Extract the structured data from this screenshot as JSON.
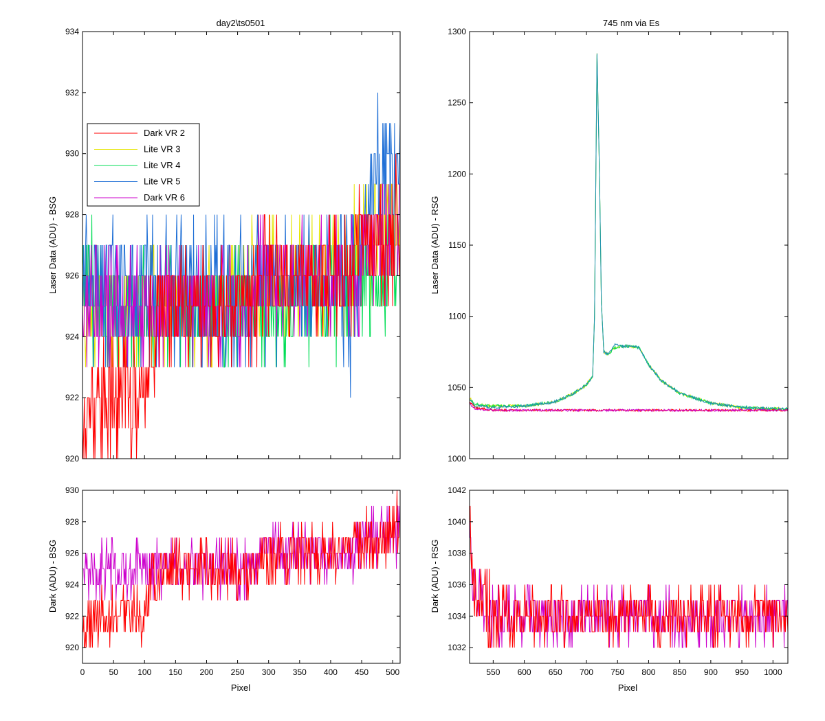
{
  "chart_data": [
    {
      "id": "tl",
      "type": "line",
      "title": "day2\\ts0501",
      "xlabel": "",
      "ylabel": "Laser Data (ADU) - BSG",
      "xlim": [
        0,
        512
      ],
      "ylim": [
        920,
        934
      ],
      "xticks": [
        0,
        50,
        100,
        150,
        200,
        250,
        300,
        350,
        400,
        450,
        500
      ],
      "yticks": [
        920,
        922,
        924,
        926,
        928,
        930,
        932,
        934
      ],
      "show_xtick_labels": false,
      "grid": false,
      "legend": {
        "placement": "upper-left",
        "entries": [
          {
            "label": "Dark VR 2",
            "color": "#ff0000"
          },
          {
            "label": "Lite VR 3",
            "color": "#e6e600"
          },
          {
            "label": "Lite VR 4",
            "color": "#00dd55"
          },
          {
            "label": "Lite VR 5",
            "color": "#1f6fd6"
          },
          {
            "label": "Dark VR 6",
            "color": "#cc00cc"
          }
        ]
      },
      "series": [
        {
          "color": "#e6e600",
          "points": [
            [
              0,
              925
            ],
            [
              40,
              925
            ],
            [
              80,
              925
            ],
            [
              120,
              925
            ],
            [
              160,
              925
            ],
            [
              200,
              925.3
            ],
            [
              240,
              925.5
            ],
            [
              280,
              925.6
            ],
            [
              320,
              926
            ],
            [
              360,
              926
            ],
            [
              400,
              926
            ],
            [
              430,
              926.2
            ],
            [
              450,
              927
            ],
            [
              470,
              927.5
            ],
            [
              490,
              927.8
            ],
            [
              512,
              928
            ]
          ],
          "noise": 1.0
        },
        {
          "color": "#00dd55",
          "points": [
            [
              0,
              926
            ],
            [
              30,
              925
            ],
            [
              60,
              925
            ],
            [
              100,
              925
            ],
            [
              150,
              925
            ],
            [
              200,
              925
            ],
            [
              250,
              925
            ],
            [
              300,
              925
            ],
            [
              350,
              925
            ],
            [
              380,
              925
            ],
            [
              400,
              925.5
            ],
            [
              420,
              925.7
            ],
            [
              440,
              926
            ],
            [
              460,
              926
            ],
            [
              512,
              926
            ]
          ],
          "noise": 1.1
        },
        {
          "color": "#1f6fd6",
          "points": [
            [
              0,
              926
            ],
            [
              50,
              925.5
            ],
            [
              100,
              925.5
            ],
            [
              150,
              925.5
            ],
            [
              200,
              925.6
            ],
            [
              250,
              925.7
            ],
            [
              300,
              925.8
            ],
            [
              350,
              926
            ],
            [
              400,
              926
            ],
            [
              415,
              926
            ],
            [
              420,
              925
            ],
            [
              425,
              927
            ],
            [
              430,
              924
            ],
            [
              435,
              926
            ],
            [
              440,
              925
            ],
            [
              450,
              927
            ],
            [
              470,
              929
            ],
            [
              490,
              929.5
            ],
            [
              512,
              929.8
            ]
          ],
          "noise": 1.2
        },
        {
          "color": "#cc00cc",
          "points": [
            [
              0,
              925
            ],
            [
              50,
              924.6
            ],
            [
              80,
              924.6
            ],
            [
              100,
              924.6
            ],
            [
              150,
              925
            ],
            [
              200,
              925
            ],
            [
              250,
              925.3
            ],
            [
              300,
              925.6
            ],
            [
              350,
              925.8
            ],
            [
              400,
              926
            ],
            [
              450,
              926.5
            ],
            [
              480,
              927
            ],
            [
              512,
              927.6
            ]
          ],
          "noise": 1.0
        },
        {
          "color": "#ff0000",
          "points": [
            [
              0,
              921
            ],
            [
              20,
              922
            ],
            [
              50,
              922
            ],
            [
              80,
              921.8
            ],
            [
              100,
              922
            ],
            [
              110,
              924
            ],
            [
              130,
              925
            ],
            [
              150,
              925
            ],
            [
              200,
              925
            ],
            [
              250,
              925.3
            ],
            [
              300,
              925.6
            ],
            [
              350,
              925.8
            ],
            [
              400,
              926.2
            ],
            [
              450,
              926.6
            ],
            [
              480,
              927.2
            ],
            [
              512,
              927.6
            ]
          ],
          "noise": 1.0
        }
      ]
    },
    {
      "id": "tr",
      "type": "line",
      "title": "745 nm via Es",
      "xlabel": "",
      "ylabel": "Laser Data (ADU) - RSG",
      "xlim": [
        512,
        1024
      ],
      "ylim": [
        1000,
        1300
      ],
      "xticks": [
        550,
        600,
        650,
        700,
        750,
        800,
        850,
        900,
        950,
        1000
      ],
      "yticks": [
        1000,
        1050,
        1100,
        1150,
        1200,
        1250,
        1300
      ],
      "show_xtick_labels": false,
      "grid": false,
      "series": [
        {
          "color": "#e6e600",
          "points": [
            [
              512,
              1043
            ],
            [
              520,
              1038
            ],
            [
              550,
              1037
            ],
            [
              600,
              1037
            ],
            [
              650,
              1040
            ],
            [
              680,
              1046
            ],
            [
              700,
              1052
            ],
            [
              710,
              1058
            ],
            [
              713,
              1100
            ],
            [
              717,
              1285
            ],
            [
              721,
              1200
            ],
            [
              724,
              1110
            ],
            [
              728,
              1075
            ],
            [
              735,
              1073
            ],
            [
              745,
              1078
            ],
            [
              755,
              1079
            ],
            [
              770,
              1079
            ],
            [
              785,
              1078
            ],
            [
              800,
              1066
            ],
            [
              820,
              1055
            ],
            [
              850,
              1046
            ],
            [
              900,
              1039
            ],
            [
              950,
              1036
            ],
            [
              1000,
              1035
            ],
            [
              1024,
              1035
            ]
          ],
          "noise": 2
        },
        {
          "color": "#00dd55",
          "points": [
            [
              512,
              1042
            ],
            [
              520,
              1038
            ],
            [
              550,
              1037
            ],
            [
              600,
              1037
            ],
            [
              650,
              1040
            ],
            [
              680,
              1046
            ],
            [
              700,
              1052
            ],
            [
              710,
              1058
            ],
            [
              713,
              1100
            ],
            [
              717,
              1284
            ],
            [
              721,
              1200
            ],
            [
              724,
              1110
            ],
            [
              728,
              1075
            ],
            [
              735,
              1073
            ],
            [
              745,
              1078
            ],
            [
              755,
              1079
            ],
            [
              770,
              1079
            ],
            [
              785,
              1078
            ],
            [
              800,
              1066
            ],
            [
              820,
              1055
            ],
            [
              850,
              1046
            ],
            [
              900,
              1039
            ],
            [
              950,
              1036
            ],
            [
              1000,
              1035
            ],
            [
              1024,
              1035
            ]
          ],
          "noise": 2
        },
        {
          "color": "#1f8fb0",
          "points": [
            [
              512,
              1042
            ],
            [
              520,
              1037
            ],
            [
              550,
              1036
            ],
            [
              600,
              1037
            ],
            [
              650,
              1040
            ],
            [
              680,
              1046
            ],
            [
              700,
              1052
            ],
            [
              710,
              1058
            ],
            [
              713,
              1100
            ],
            [
              717,
              1285
            ],
            [
              721,
              1200
            ],
            [
              724,
              1110
            ],
            [
              728,
              1075
            ],
            [
              735,
              1073
            ],
            [
              745,
              1080
            ],
            [
              755,
              1079
            ],
            [
              770,
              1079
            ],
            [
              785,
              1078
            ],
            [
              800,
              1066
            ],
            [
              820,
              1055
            ],
            [
              850,
              1046
            ],
            [
              900,
              1039
            ],
            [
              950,
              1036
            ],
            [
              1000,
              1035
            ],
            [
              1024,
              1035
            ]
          ],
          "noise": 2
        },
        {
          "color": "#ff0000",
          "points": [
            [
              512,
              1040
            ],
            [
              520,
              1036
            ],
            [
              550,
              1034
            ],
            [
              600,
              1034
            ],
            [
              700,
              1034
            ],
            [
              800,
              1034
            ],
            [
              900,
              1034
            ],
            [
              1024,
              1034
            ]
          ],
          "noise": 1.5
        },
        {
          "color": "#cc00cc",
          "points": [
            [
              512,
              1039
            ],
            [
              520,
              1035
            ],
            [
              550,
              1034
            ],
            [
              600,
              1034
            ],
            [
              700,
              1034
            ],
            [
              800,
              1034
            ],
            [
              900,
              1034
            ],
            [
              1024,
              1034
            ]
          ],
          "noise": 1.5
        }
      ]
    },
    {
      "id": "bl",
      "type": "line",
      "title": "",
      "xlabel": "Pixel",
      "ylabel": "Dark (ADU) - BSG",
      "xlim": [
        0,
        512
      ],
      "ylim": [
        919,
        930
      ],
      "xticks": [
        0,
        50,
        100,
        150,
        200,
        250,
        300,
        350,
        400,
        450,
        500
      ],
      "yticks": [
        920,
        922,
        924,
        926,
        928,
        930
      ],
      "show_xtick_labels": true,
      "grid": false,
      "series": [
        {
          "color": "#cc00cc",
          "points": [
            [
              0,
              925
            ],
            [
              50,
              924.6
            ],
            [
              80,
              924.6
            ],
            [
              100,
              924.6
            ],
            [
              150,
              925
            ],
            [
              200,
              925
            ],
            [
              250,
              925.3
            ],
            [
              300,
              925.6
            ],
            [
              350,
              925.8
            ],
            [
              400,
              926
            ],
            [
              450,
              926.5
            ],
            [
              480,
              927
            ],
            [
              512,
              927.6
            ]
          ],
          "noise": 1.0
        },
        {
          "color": "#ff0000",
          "points": [
            [
              0,
              921
            ],
            [
              20,
              922
            ],
            [
              50,
              922
            ],
            [
              80,
              921.8
            ],
            [
              100,
              922
            ],
            [
              110,
              924
            ],
            [
              130,
              925
            ],
            [
              150,
              925
            ],
            [
              200,
              925
            ],
            [
              250,
              925.3
            ],
            [
              300,
              925.6
            ],
            [
              350,
              925.8
            ],
            [
              400,
              926.2
            ],
            [
              450,
              926.6
            ],
            [
              480,
              927.2
            ],
            [
              512,
              927.6
            ]
          ],
          "noise": 1.0
        }
      ]
    },
    {
      "id": "br",
      "type": "line",
      "title": "",
      "xlabel": "Pixel",
      "ylabel": "Dark (ADU) - RSG",
      "xlim": [
        512,
        1024
      ],
      "ylim": [
        1031,
        1042
      ],
      "xticks": [
        550,
        600,
        650,
        700,
        750,
        800,
        850,
        900,
        950,
        1000
      ],
      "yticks": [
        1032,
        1034,
        1036,
        1038,
        1040,
        1042
      ],
      "show_xtick_labels": true,
      "grid": false,
      "series": [
        {
          "color": "#cc00cc",
          "points": [
            [
              512,
              1041
            ],
            [
              515,
              1037
            ],
            [
              520,
              1035
            ],
            [
              550,
              1034
            ],
            [
              600,
              1034
            ],
            [
              700,
              1034
            ],
            [
              800,
              1034
            ],
            [
              900,
              1034
            ],
            [
              1024,
              1034
            ]
          ],
          "noise": 1.1
        },
        {
          "color": "#ff0000",
          "points": [
            [
              512,
              1040
            ],
            [
              515,
              1037
            ],
            [
              520,
              1035
            ],
            [
              550,
              1034.2
            ],
            [
              600,
              1034
            ],
            [
              700,
              1034
            ],
            [
              800,
              1034
            ],
            [
              900,
              1034
            ],
            [
              1024,
              1034.4
            ]
          ],
          "noise": 1.1
        }
      ]
    }
  ]
}
